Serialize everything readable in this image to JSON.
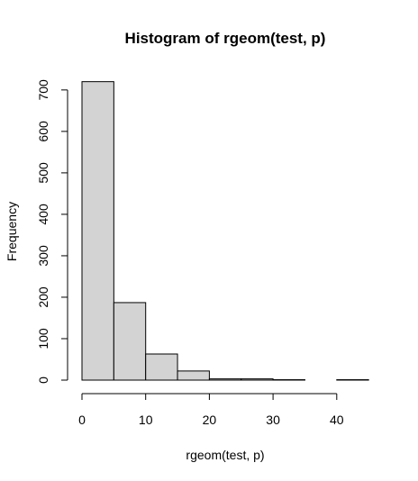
{
  "chart_data": {
    "type": "bar",
    "title": "Histogram of rgeom(test, p)",
    "xlabel": "rgeom(test, p)",
    "ylabel": "Frequency",
    "bins": [
      {
        "from": 0,
        "to": 5,
        "value": 720
      },
      {
        "from": 5,
        "to": 10,
        "value": 187
      },
      {
        "from": 10,
        "to": 15,
        "value": 63
      },
      {
        "from": 15,
        "to": 20,
        "value": 22
      },
      {
        "from": 20,
        "to": 25,
        "value": 3
      },
      {
        "from": 25,
        "to": 30,
        "value": 3
      },
      {
        "from": 30,
        "to": 35,
        "value": 1
      },
      {
        "from": 35,
        "to": 40,
        "value": 0
      },
      {
        "from": 40,
        "to": 45,
        "value": 1
      }
    ],
    "xticks": [
      0,
      10,
      20,
      30,
      40
    ],
    "yticks": [
      0,
      100,
      200,
      300,
      400,
      500,
      600,
      700
    ],
    "xlim": [
      0,
      45
    ],
    "ylim": [
      0,
      720
    ],
    "grid": false,
    "bar_color": "#d3d3d3",
    "edge_color": "#000000"
  }
}
